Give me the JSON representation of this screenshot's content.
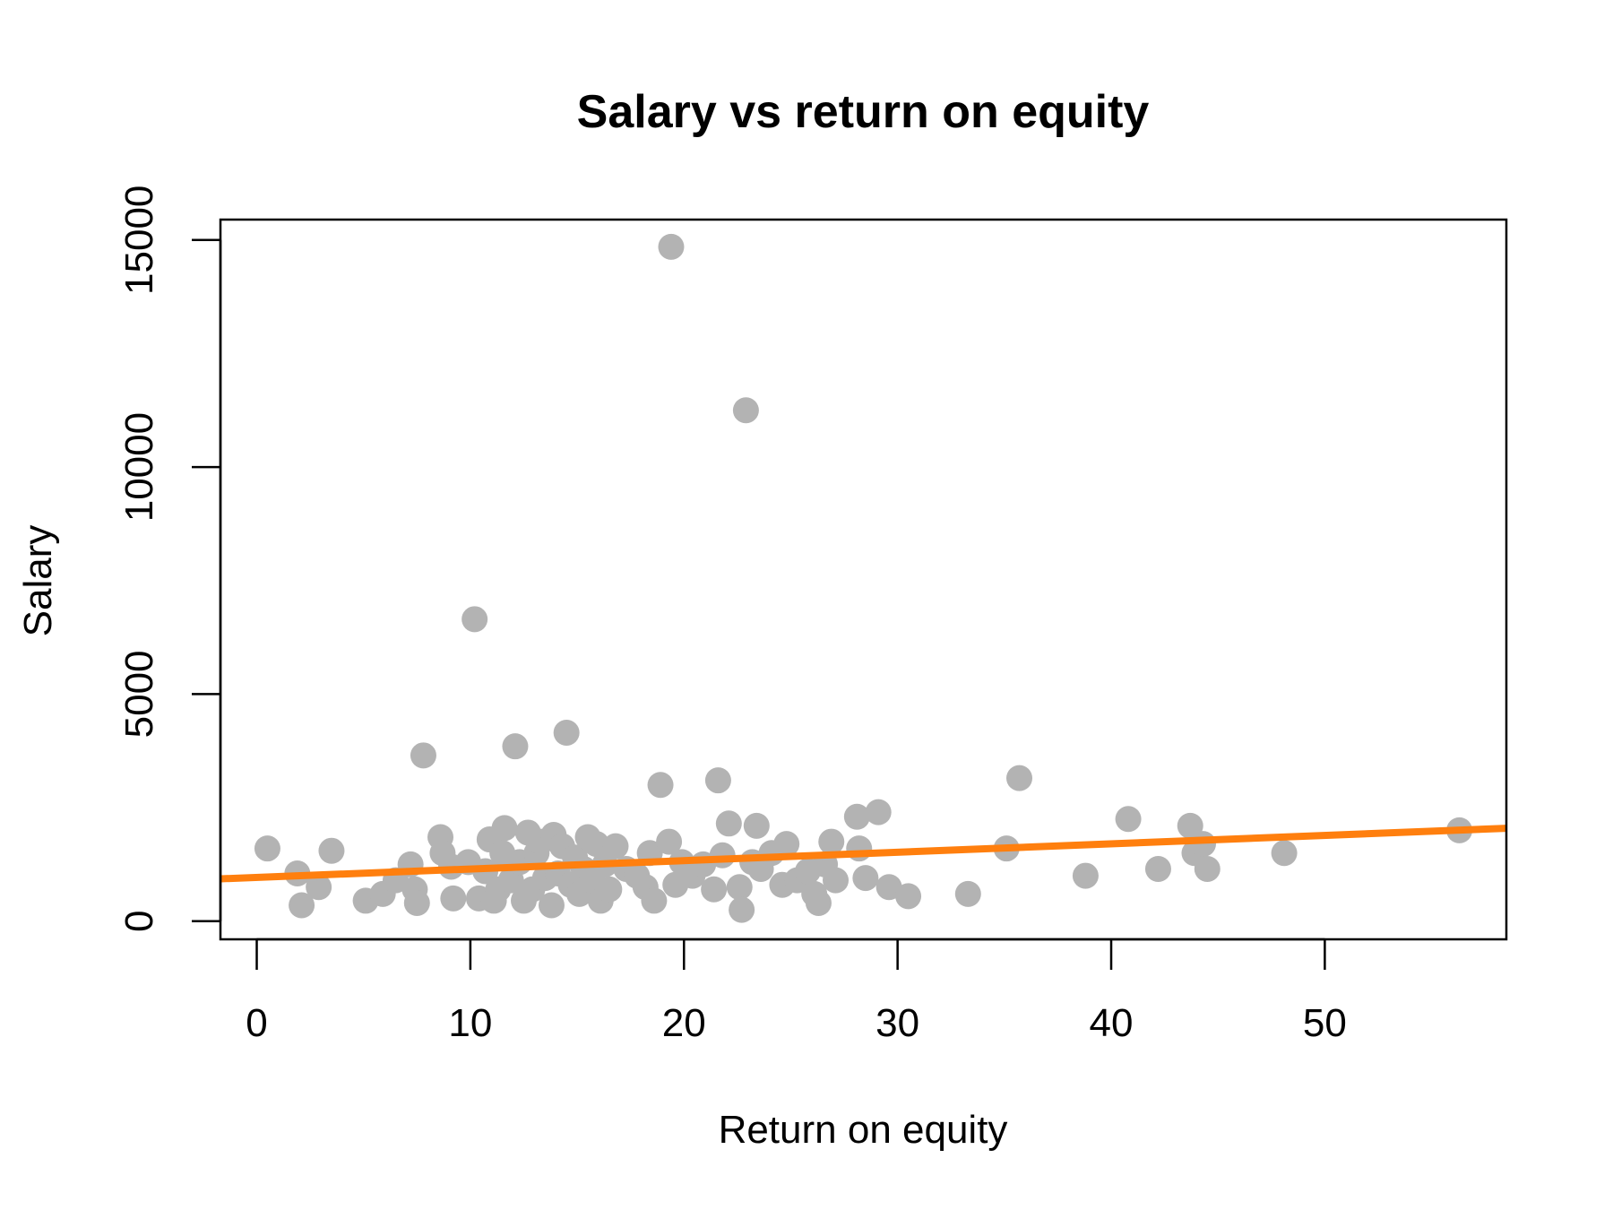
{
  "chart_data": {
    "type": "scatter",
    "title": "Salary vs return on equity",
    "xlabel": "Return on equity",
    "ylabel": "Salary",
    "xlim": [
      -1.7,
      58.5
    ],
    "ylim": [
      -400,
      15450
    ],
    "x_ticks": [
      0,
      10,
      20,
      30,
      40,
      50
    ],
    "y_ticks": [
      0,
      5000,
      10000,
      15000
    ],
    "grid": false,
    "legend": "none",
    "point_color": "#b3b3b3",
    "line_color": "#ff7f0e",
    "series": [
      {
        "type": "scatter",
        "points": [
          [
            0.5,
            1600
          ],
          [
            1.9,
            1050
          ],
          [
            2.1,
            350
          ],
          [
            2.9,
            750
          ],
          [
            3.5,
            1550
          ],
          [
            5.1,
            450
          ],
          [
            5.9,
            600
          ],
          [
            6.5,
            900
          ],
          [
            7.2,
            1250
          ],
          [
            7.4,
            700
          ],
          [
            7.5,
            400
          ],
          [
            7.8,
            3650
          ],
          [
            8.6,
            1850
          ],
          [
            8.7,
            1500
          ],
          [
            9.1,
            1200
          ],
          [
            9.2,
            500
          ],
          [
            9.9,
            1300
          ],
          [
            10.2,
            6650
          ],
          [
            10.4,
            500
          ],
          [
            10.7,
            1100
          ],
          [
            10.9,
            1800
          ],
          [
            11.1,
            450
          ],
          [
            11.3,
            700
          ],
          [
            11.5,
            1500
          ],
          [
            11.6,
            2050
          ],
          [
            11.9,
            900
          ],
          [
            12.1,
            3850
          ],
          [
            12.3,
            1300
          ],
          [
            12.5,
            450
          ],
          [
            12.7,
            1950
          ],
          [
            12.9,
            700
          ],
          [
            13.1,
            1500
          ],
          [
            13.3,
            1750
          ],
          [
            13.5,
            950
          ],
          [
            13.8,
            350
          ],
          [
            13.9,
            1900
          ],
          [
            14.1,
            1050
          ],
          [
            14.3,
            1650
          ],
          [
            14.5,
            4150
          ],
          [
            14.7,
            800
          ],
          [
            14.9,
            1400
          ],
          [
            15.1,
            600
          ],
          [
            15.3,
            1150
          ],
          [
            15.5,
            1850
          ],
          [
            15.7,
            900
          ],
          [
            15.9,
            1700
          ],
          [
            16.1,
            450
          ],
          [
            16.3,
            1250
          ],
          [
            16.5,
            700
          ],
          [
            16.8,
            1650
          ],
          [
            17.3,
            1150
          ],
          [
            17.8,
            1000
          ],
          [
            18.2,
            750
          ],
          [
            18.4,
            1500
          ],
          [
            18.6,
            450
          ],
          [
            18.9,
            3000
          ],
          [
            19.3,
            1750
          ],
          [
            19.4,
            14850
          ],
          [
            19.6,
            800
          ],
          [
            19.9,
            1300
          ],
          [
            20.4,
            1000
          ],
          [
            20.9,
            1250
          ],
          [
            21.4,
            700
          ],
          [
            21.6,
            3100
          ],
          [
            21.8,
            1450
          ],
          [
            22.1,
            2150
          ],
          [
            22.6,
            750
          ],
          [
            22.7,
            250
          ],
          [
            22.9,
            11250
          ],
          [
            23.2,
            1300
          ],
          [
            23.4,
            2100
          ],
          [
            23.6,
            1150
          ],
          [
            24.1,
            1500
          ],
          [
            24.6,
            800
          ],
          [
            24.8,
            1700
          ],
          [
            25.3,
            900
          ],
          [
            25.8,
            1100
          ],
          [
            26.1,
            600
          ],
          [
            26.3,
            400
          ],
          [
            26.6,
            1250
          ],
          [
            26.9,
            1750
          ],
          [
            27.1,
            900
          ],
          [
            28.1,
            2300
          ],
          [
            28.2,
            1600
          ],
          [
            28.5,
            950
          ],
          [
            29.1,
            2400
          ],
          [
            29.6,
            750
          ],
          [
            30.5,
            550
          ],
          [
            33.3,
            600
          ],
          [
            35.1,
            1600
          ],
          [
            35.7,
            3150
          ],
          [
            38.8,
            1000
          ],
          [
            40.8,
            2250
          ],
          [
            42.2,
            1150
          ],
          [
            43.7,
            2100
          ],
          [
            43.9,
            1500
          ],
          [
            44.3,
            1700
          ],
          [
            44.5,
            1150
          ],
          [
            48.1,
            1500
          ],
          [
            56.3,
            2000
          ]
        ]
      },
      {
        "type": "line",
        "points": [
          [
            -1.7,
            932
          ],
          [
            58.5,
            2045
          ]
        ]
      }
    ]
  }
}
